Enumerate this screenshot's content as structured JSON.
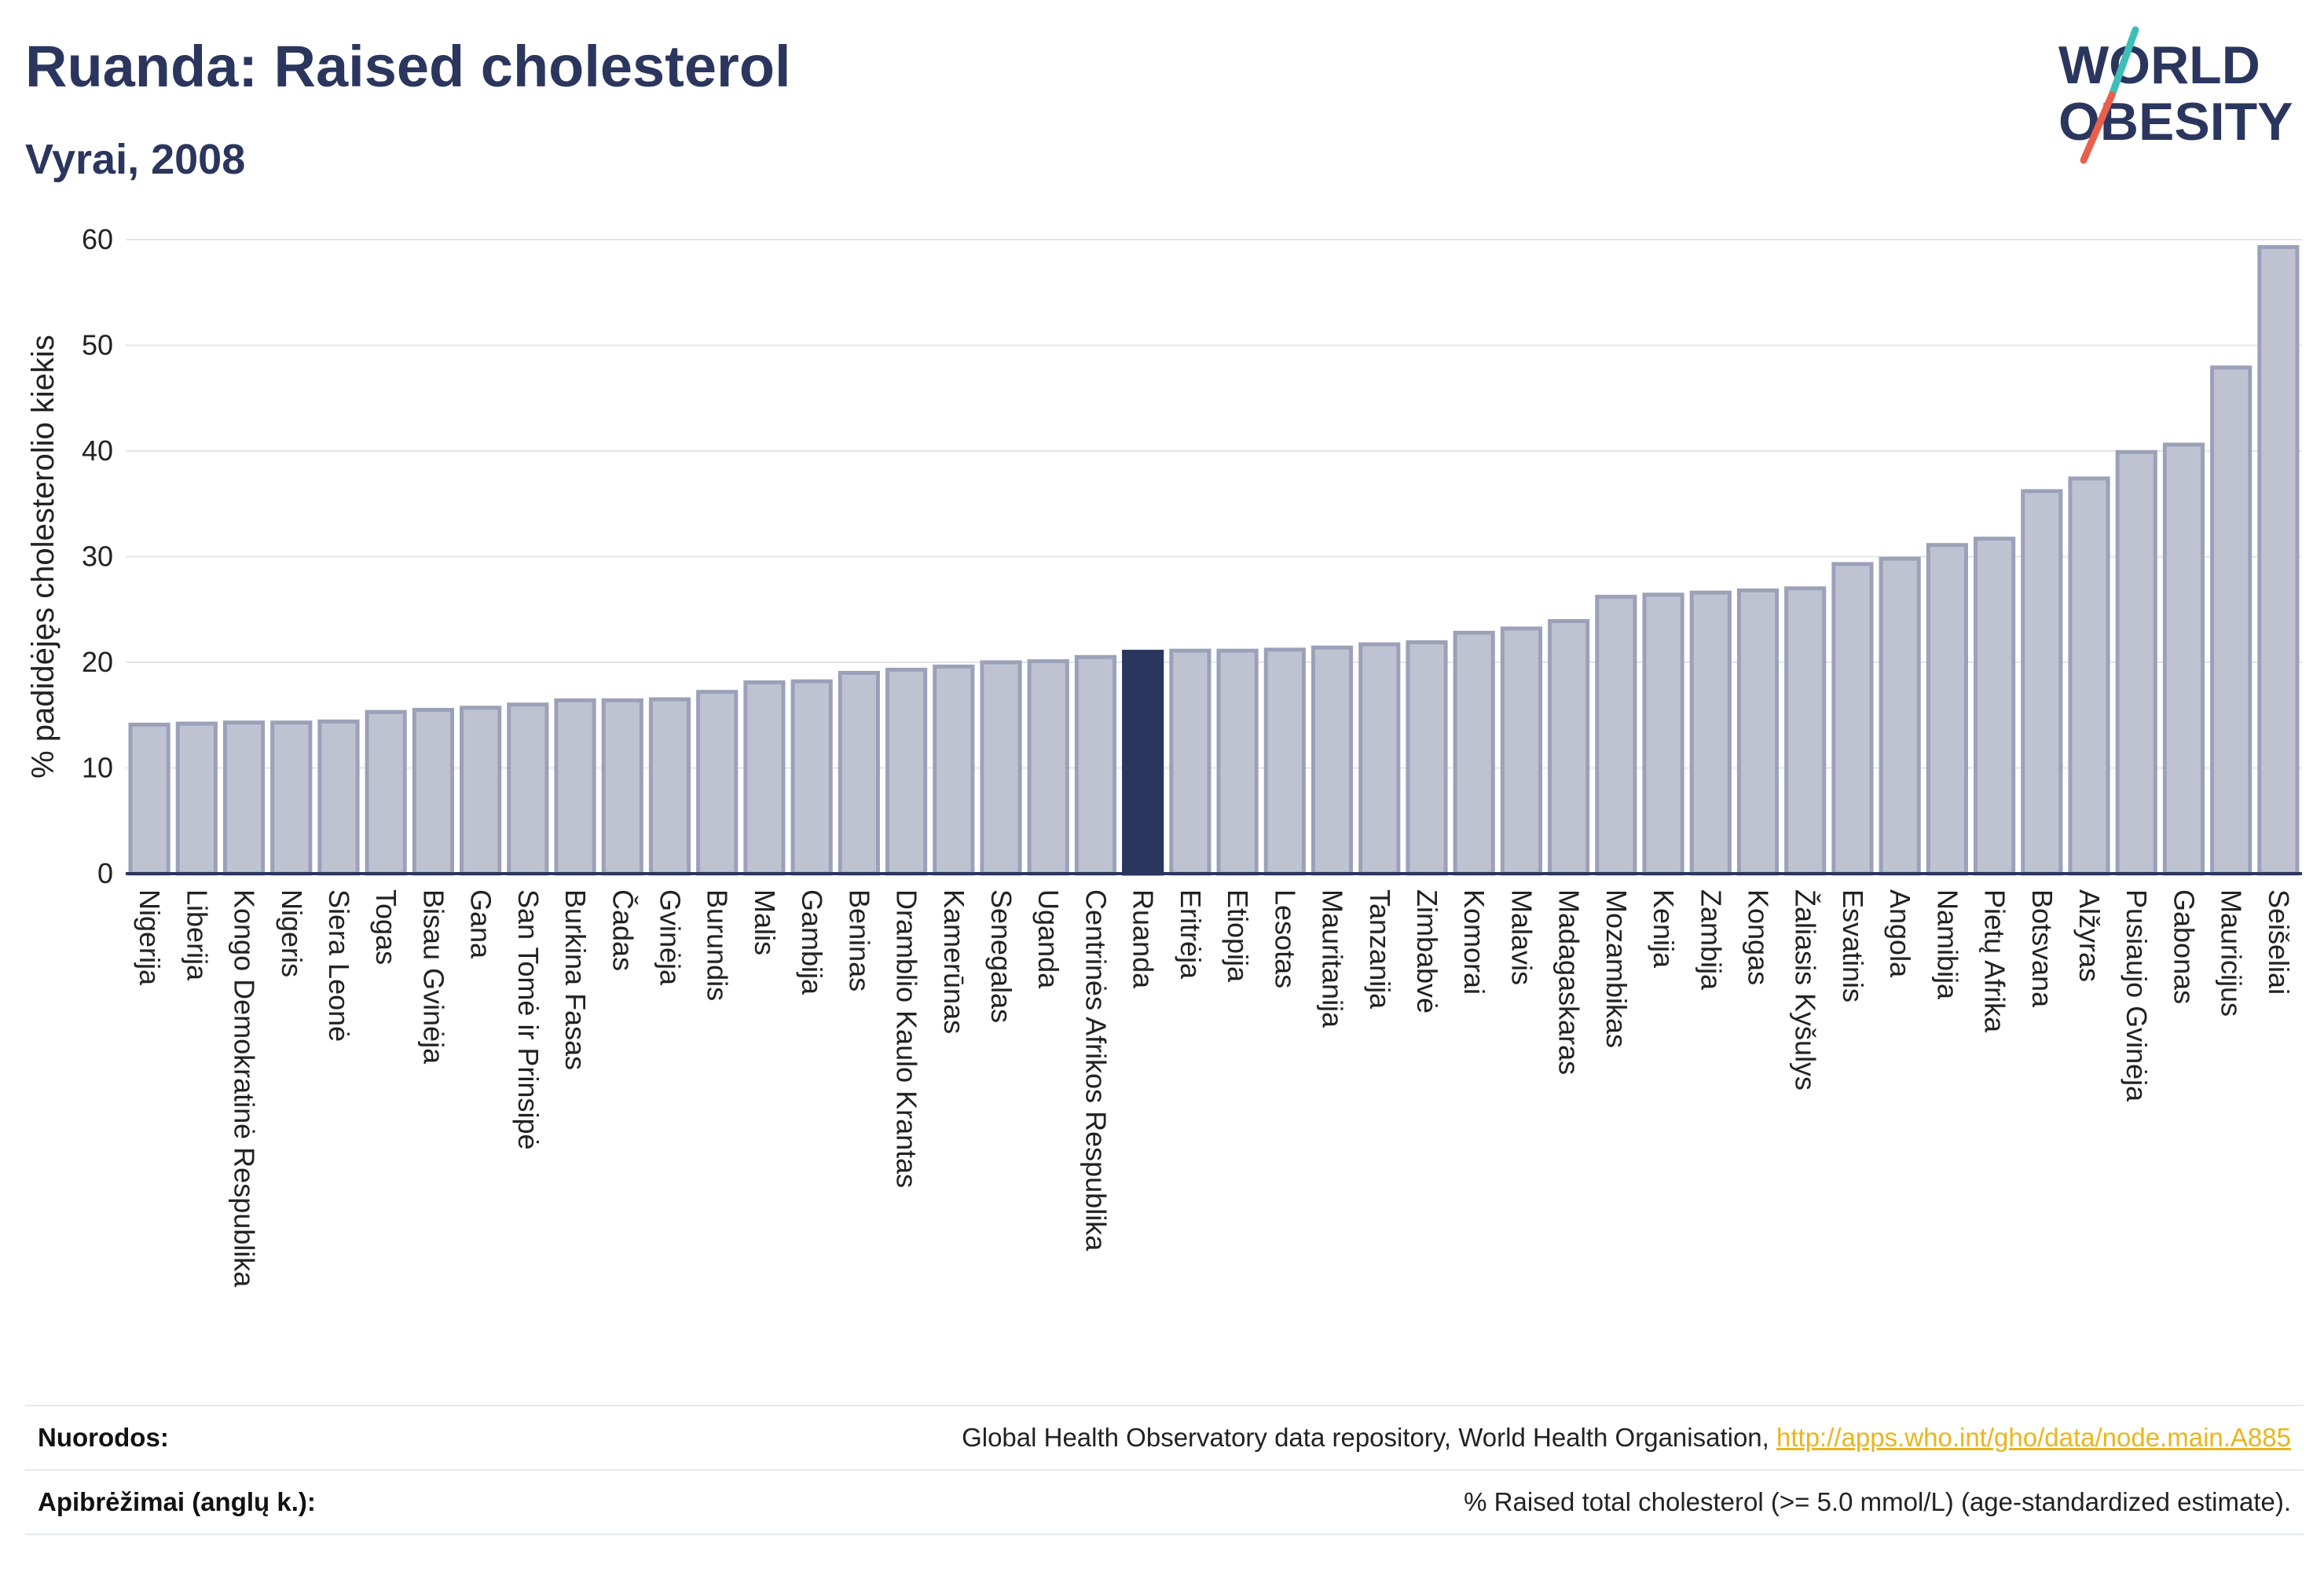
{
  "header": {
    "title": "Ruanda: Raised cholesterol",
    "subtitle": "Vyrai, 2008"
  },
  "logo": {
    "line1": "WORLD",
    "line2": "OBESITY",
    "colors": {
      "text": "#2b365e",
      "slash_top": "#3dbfb8",
      "slash_bottom": "#e8604c"
    }
  },
  "chart_data": {
    "type": "bar",
    "ylabel": "% padidėjęs cholesterolio kiekis",
    "ylim": [
      0,
      60
    ],
    "yticks": [
      0,
      10,
      20,
      30,
      40,
      50,
      60
    ],
    "grid": true,
    "highlight": "Ruanda",
    "colors": {
      "bar": "#bfc3d1",
      "bar_stroke": "#9ba1b8",
      "highlight": "#2b365e",
      "axis": "#2b365e",
      "grid": "#e3e5ea"
    },
    "categories": [
      "Nigerija",
      "Liberija",
      "Kongo Demokratinė Respublika",
      "Nigeris",
      "Siera Leonė",
      "Togas",
      "Bisau Gvinėja",
      "Gana",
      "San Tomė ir Prinsipė",
      "Burkina Fasas",
      "Čadas",
      "Gvinėja",
      "Burundis",
      "Malis",
      "Gambija",
      "Beninas",
      "Dramblio Kaulo Krantas",
      "Kamerūnas",
      "Senegalas",
      "Uganda",
      "Centrinės Afrikos Respublika",
      "Ruanda",
      "Eritrėja",
      "Etiopija",
      "Lesotas",
      "Mauritanija",
      "Tanzanija",
      "Zimbabvė",
      "Komorai",
      "Malavis",
      "Madagaskaras",
      "Mozambikas",
      "Kenija",
      "Zambija",
      "Kongas",
      "Žaliasis Kyšulys",
      "Esvatinis",
      "Angola",
      "Namibija",
      "Pietų Afrika",
      "Botsvana",
      "Alžyras",
      "Pusiaujo Gvinėja",
      "Gabonas",
      "Mauricijus",
      "Seišeliai"
    ],
    "values": [
      14.1,
      14.2,
      14.3,
      14.3,
      14.4,
      15.3,
      15.5,
      15.7,
      16.0,
      16.4,
      16.4,
      16.5,
      17.2,
      18.1,
      18.2,
      19.0,
      19.3,
      19.6,
      20.0,
      20.1,
      20.5,
      21.0,
      21.1,
      21.1,
      21.2,
      21.4,
      21.7,
      21.9,
      22.8,
      23.2,
      23.9,
      26.2,
      26.4,
      26.6,
      26.8,
      27.0,
      29.3,
      29.8,
      31.1,
      31.7,
      36.2,
      37.4,
      39.9,
      40.6,
      47.9,
      59.3
    ]
  },
  "footer": {
    "sources_label": "Nuorodos:",
    "sources_text": "Global Health Observatory data repository, World Health Organisation, ",
    "sources_link": "http://apps.who.int/gho/data/node.main.A885",
    "definitions_label": "Apibrėžimai (anglų k.):",
    "definitions_text": "% Raised total cholesterol (>= 5.0 mmol/L) (age-standardized estimate)."
  }
}
